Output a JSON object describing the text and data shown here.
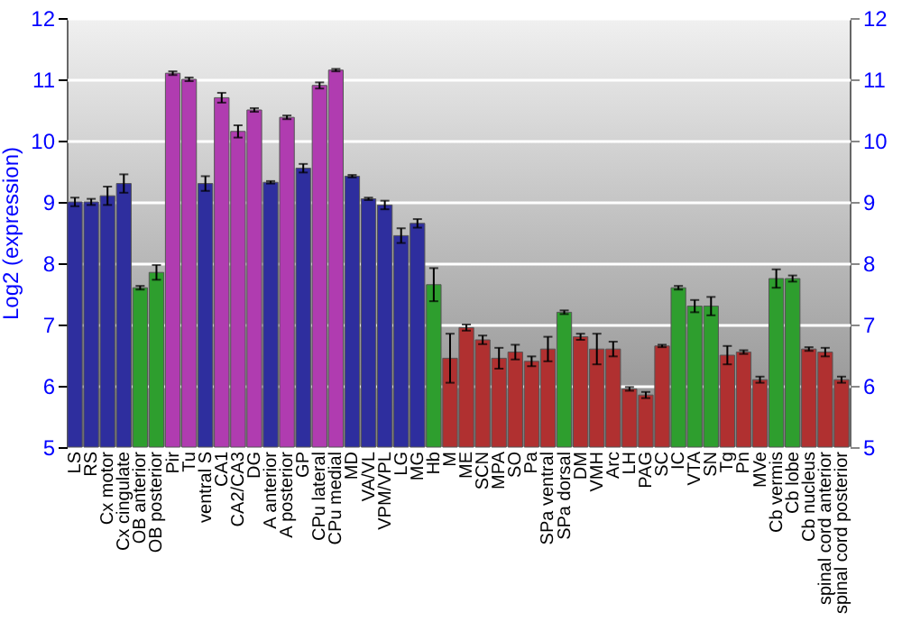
{
  "chart_data": {
    "type": "bar",
    "ylabel": "Log2 (expression)",
    "categories": [
      "LS",
      "RS",
      "Cx motor",
      "Cx cingulate",
      "OB anterior",
      "OB posterior",
      "Pir",
      "Tu",
      "ventral S",
      "CA1",
      "CA2/CA3",
      "DG",
      "A anterior",
      "A posterior",
      "GP",
      "CPu lateral",
      "CPu medial",
      "MD",
      "VA/VL",
      "VPM/VPL",
      "LG",
      "MG",
      "Hb",
      "M",
      "ME",
      "SCN",
      "MPA",
      "SO",
      "Pa",
      "SPa ventral",
      "SPa dorsal",
      "DM",
      "VMH",
      "Arc",
      "LH",
      "PAG",
      "SC",
      "IC",
      "VTA",
      "SN",
      "Tg",
      "Pn",
      "MVe",
      "Cb vermis",
      "Cb lobe",
      "Cb nucleus",
      "spinal cord anterior",
      "spinal cord posterior"
    ],
    "values": [
      9.0,
      9.0,
      9.1,
      9.3,
      7.6,
      7.85,
      11.1,
      11.0,
      9.3,
      10.7,
      10.15,
      10.5,
      9.32,
      10.38,
      9.55,
      10.9,
      11.15,
      9.42,
      9.05,
      8.95,
      8.45,
      8.65,
      7.65,
      6.45,
      6.95,
      6.75,
      6.45,
      6.55,
      6.4,
      6.6,
      7.2,
      6.8,
      6.6,
      6.6,
      5.95,
      5.85,
      6.65,
      7.6,
      7.3,
      7.3,
      6.5,
      6.55,
      6.1,
      7.75,
      7.75,
      6.6,
      6.55,
      6.1
    ],
    "errors": [
      0.07,
      0.05,
      0.15,
      0.15,
      0.03,
      0.12,
      0.03,
      0.03,
      0.12,
      0.08,
      0.1,
      0.03,
      0.02,
      0.03,
      0.07,
      0.05,
      0.02,
      0.02,
      0.02,
      0.07,
      0.12,
      0.07,
      0.27,
      0.4,
      0.05,
      0.07,
      0.17,
      0.12,
      0.08,
      0.2,
      0.03,
      0.05,
      0.25,
      0.12,
      0.03,
      0.05,
      0.02,
      0.03,
      0.1,
      0.15,
      0.15,
      0.03,
      0.05,
      0.15,
      0.05,
      0.03,
      0.07,
      0.05
    ],
    "colors": [
      "#2e2e9e",
      "#2e2e9e",
      "#2e2e9e",
      "#2e2e9e",
      "#2e9e2e",
      "#2e9e2e",
      "#b03cb0",
      "#b03cb0",
      "#2e2e9e",
      "#b03cb0",
      "#b03cb0",
      "#b03cb0",
      "#2e2e9e",
      "#b03cb0",
      "#2e2e9e",
      "#b03cb0",
      "#b03cb0",
      "#2e2e9e",
      "#2e2e9e",
      "#2e2e9e",
      "#2e2e9e",
      "#2e2e9e",
      "#2e9e2e",
      "#b03030",
      "#b03030",
      "#b03030",
      "#b03030",
      "#b03030",
      "#b03030",
      "#b03030",
      "#2e9e2e",
      "#b03030",
      "#b03030",
      "#b03030",
      "#b03030",
      "#b03030",
      "#b03030",
      "#2e9e2e",
      "#2e9e2e",
      "#2e9e2e",
      "#b03030",
      "#b03030",
      "#b03030",
      "#2e9e2e",
      "#2e9e2e",
      "#b03030",
      "#b03030",
      "#b03030"
    ],
    "ylim": [
      5,
      12
    ],
    "yticks": [
      5,
      6,
      7,
      8,
      9,
      10,
      11,
      12
    ],
    "y2lim": [
      5,
      12
    ],
    "y2ticks": [
      5,
      6,
      7,
      8,
      9,
      10,
      11,
      12
    ],
    "grid": "y"
  }
}
